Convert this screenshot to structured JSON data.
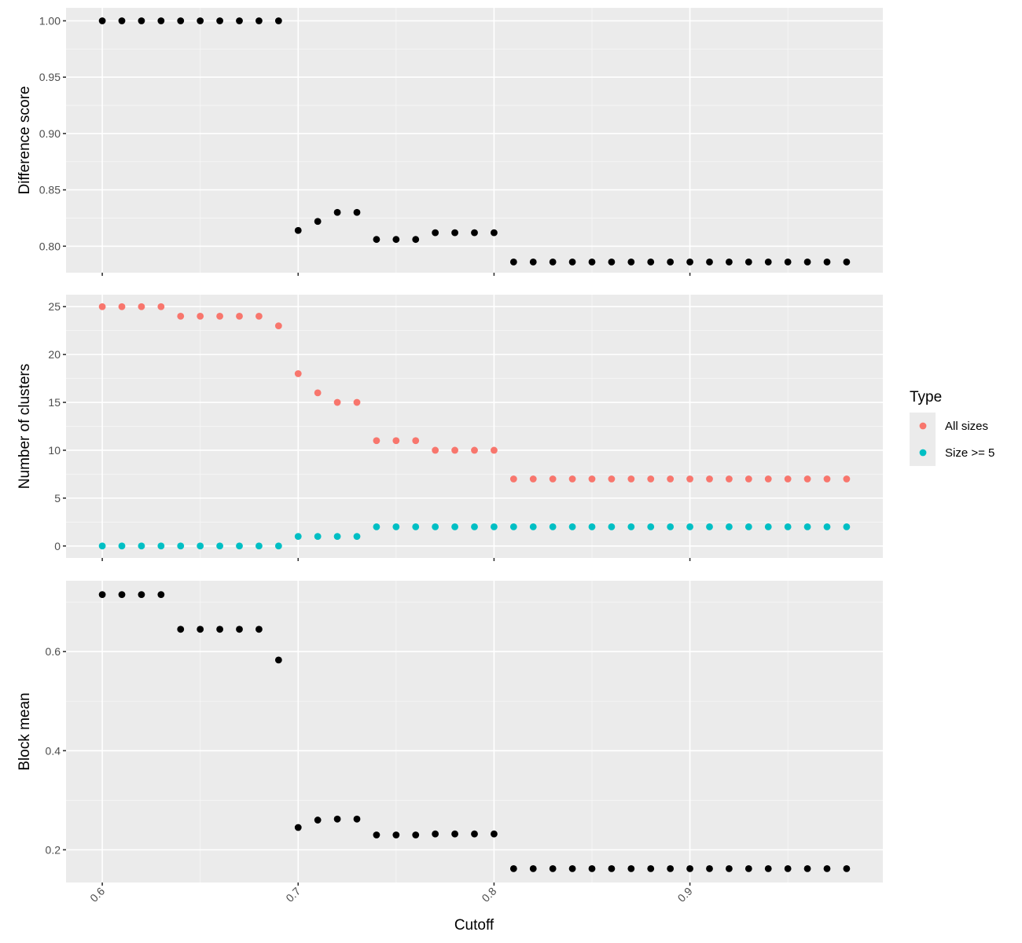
{
  "chart_data": {
    "type": "scatter",
    "xlabel": "Cutoff",
    "x_ticks": [
      0.6,
      0.7,
      0.8,
      0.9
    ],
    "x_tick_labels": [
      "0.6",
      "0.7",
      "0.8",
      "0.9"
    ],
    "x_range": [
      0.5815,
      0.9985
    ],
    "cutoffs": [
      0.6,
      0.61,
      0.62,
      0.63,
      0.64,
      0.65,
      0.66,
      0.67,
      0.68,
      0.69,
      0.7,
      0.71,
      0.72,
      0.73,
      0.74,
      0.75,
      0.76,
      0.77,
      0.78,
      0.79,
      0.8,
      0.81,
      0.82,
      0.83,
      0.84,
      0.85,
      0.86,
      0.87,
      0.88,
      0.89,
      0.9,
      0.91,
      0.92,
      0.93,
      0.94,
      0.95,
      0.96,
      0.97,
      0.98
    ],
    "colors": {
      "black": "#000000",
      "all_sizes": "#F8766D",
      "size_ge_5": "#00BFC4"
    },
    "legend": {
      "title": "Type",
      "placement": "right",
      "entries": [
        {
          "label": "All sizes",
          "color": "#F8766D"
        },
        {
          "label": "Size >= 5",
          "color": "#00BFC4"
        }
      ]
    },
    "panels": [
      {
        "ylabel": "Difference score",
        "y_range": [
          0.7765,
          1.0115
        ],
        "y_ticks": [
          0.8,
          0.85,
          0.9,
          0.95,
          1.0
        ],
        "y_tick_labels": [
          "0.80",
          "0.85",
          "0.90",
          "0.95",
          "1.00"
        ],
        "series": [
          {
            "color": "#000000",
            "values": [
              1.0,
              1.0,
              1.0,
              1.0,
              1.0,
              1.0,
              1.0,
              1.0,
              1.0,
              1.0,
              0.814,
              0.822,
              0.83,
              0.83,
              0.806,
              0.806,
              0.806,
              0.812,
              0.812,
              0.812,
              0.812,
              0.786,
              0.786,
              0.786,
              0.786,
              0.786,
              0.786,
              0.786,
              0.786,
              0.786,
              0.786,
              0.786,
              0.786,
              0.786,
              0.786,
              0.786,
              0.786,
              0.786,
              0.786
            ]
          }
        ]
      },
      {
        "ylabel": "Number of clusters",
        "y_range": [
          -1.25,
          26.25
        ],
        "y_ticks": [
          0,
          5,
          10,
          15,
          20,
          25
        ],
        "y_tick_labels": [
          "0",
          "5",
          "10",
          "15",
          "20",
          "25"
        ],
        "series": [
          {
            "name": "All sizes",
            "color": "#F8766D",
            "values": [
              25,
              25,
              25,
              25,
              24,
              24,
              24,
              24,
              24,
              23,
              18,
              16,
              15,
              15,
              11,
              11,
              11,
              10,
              10,
              10,
              10,
              7,
              7,
              7,
              7,
              7,
              7,
              7,
              7,
              7,
              7,
              7,
              7,
              7,
              7,
              7,
              7,
              7,
              7
            ]
          },
          {
            "name": "Size >= 5",
            "color": "#00BFC4",
            "values": [
              0,
              0,
              0,
              0,
              0,
              0,
              0,
              0,
              0,
              0,
              1,
              1,
              1,
              1,
              2,
              2,
              2,
              2,
              2,
              2,
              2,
              2,
              2,
              2,
              2,
              2,
              2,
              2,
              2,
              2,
              2,
              2,
              2,
              2,
              2,
              2,
              2,
              2,
              2
            ]
          }
        ]
      },
      {
        "ylabel": "Block mean",
        "y_range": [
          0.134,
          0.743
        ],
        "y_ticks": [
          0.2,
          0.4,
          0.6
        ],
        "y_tick_labels": [
          "0.2",
          "0.4",
          "0.6"
        ],
        "series": [
          {
            "color": "#000000",
            "values": [
              0.715,
              0.715,
              0.715,
              0.715,
              0.645,
              0.645,
              0.645,
              0.645,
              0.645,
              0.583,
              0.245,
              0.26,
              0.262,
              0.262,
              0.23,
              0.23,
              0.23,
              0.232,
              0.232,
              0.232,
              0.232,
              0.162,
              0.162,
              0.162,
              0.162,
              0.162,
              0.162,
              0.162,
              0.162,
              0.162,
              0.162,
              0.162,
              0.162,
              0.162,
              0.162,
              0.162,
              0.162,
              0.162,
              0.162
            ]
          }
        ]
      }
    ]
  }
}
